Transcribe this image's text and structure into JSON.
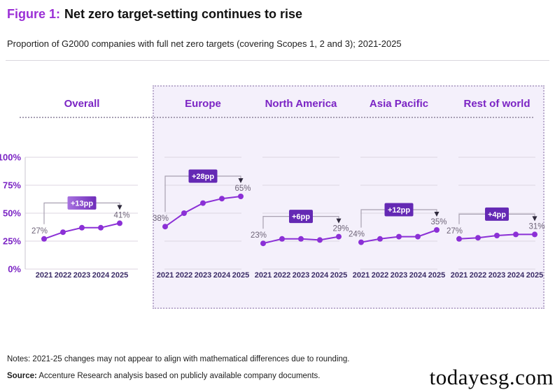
{
  "figure": {
    "label": "Figure 1:",
    "title": "Net zero target-setting continues to rise",
    "subtitle": "Proportion of G2000 companies with full net zero targets (covering Scopes 1, 2 and 3); 2021-2025"
  },
  "chart_data": {
    "type": "line",
    "x": [
      "2021",
      "2022",
      "2023",
      "2024",
      "2025"
    ],
    "ylim": [
      0,
      100
    ],
    "ytick_values": [
      100,
      75,
      50,
      25,
      0
    ],
    "ytick_labels": [
      "100%",
      "75%",
      "50%",
      "25%",
      "0%"
    ],
    "grid": true,
    "unit": "percent",
    "series": [
      {
        "name": "Overall",
        "values": [
          27,
          33,
          37,
          37,
          41
        ],
        "first_label": "27%",
        "last_label": "41%",
        "change_label": "+13pp",
        "in_panel": false
      },
      {
        "name": "Europe",
        "values": [
          38,
          50,
          59,
          63,
          65
        ],
        "first_label": "38%",
        "last_label": "65%",
        "change_label": "+28pp",
        "in_panel": true
      },
      {
        "name": "North America",
        "values": [
          23,
          27,
          27,
          26,
          29
        ],
        "first_label": "23%",
        "last_label": "29%",
        "change_label": "+6pp",
        "in_panel": true
      },
      {
        "name": "Asia Pacific",
        "values": [
          24,
          27,
          29,
          29,
          35
        ],
        "first_label": "24%",
        "last_label": "35%",
        "change_label": "+12pp",
        "in_panel": true
      },
      {
        "name": "Rest of world",
        "values": [
          27,
          28,
          30,
          31,
          31
        ],
        "first_label": "27%",
        "last_label": "31%",
        "change_label": "+4pp",
        "in_panel": true
      }
    ]
  },
  "notes": {
    "notes_text": "Notes: 2021-25 changes may not appear to align with mathematical differences due to rounding.",
    "source_label": "Source:",
    "source_text": " Accenture Research analysis based on publicly available company documents."
  },
  "watermark": "todayesg.com",
  "colors": {
    "line_purple": "#8B30D6",
    "header_purple": "#7B24C4",
    "year_label": "#3A2B66",
    "value_label": "#6E6478",
    "badge_solid": "#6429B4",
    "badge_gradient_from": "#A873E0",
    "badge_gradient_to": "#6F2CBA",
    "bracket_gray": "#A8A1B1",
    "arrow_dark": "#2F2A3D",
    "grid_gray": "#DCD6E2",
    "axis_gray": "#C9C4D2",
    "panel_bg": "#F4F0FB",
    "accent_title": "#9B2FD6"
  }
}
